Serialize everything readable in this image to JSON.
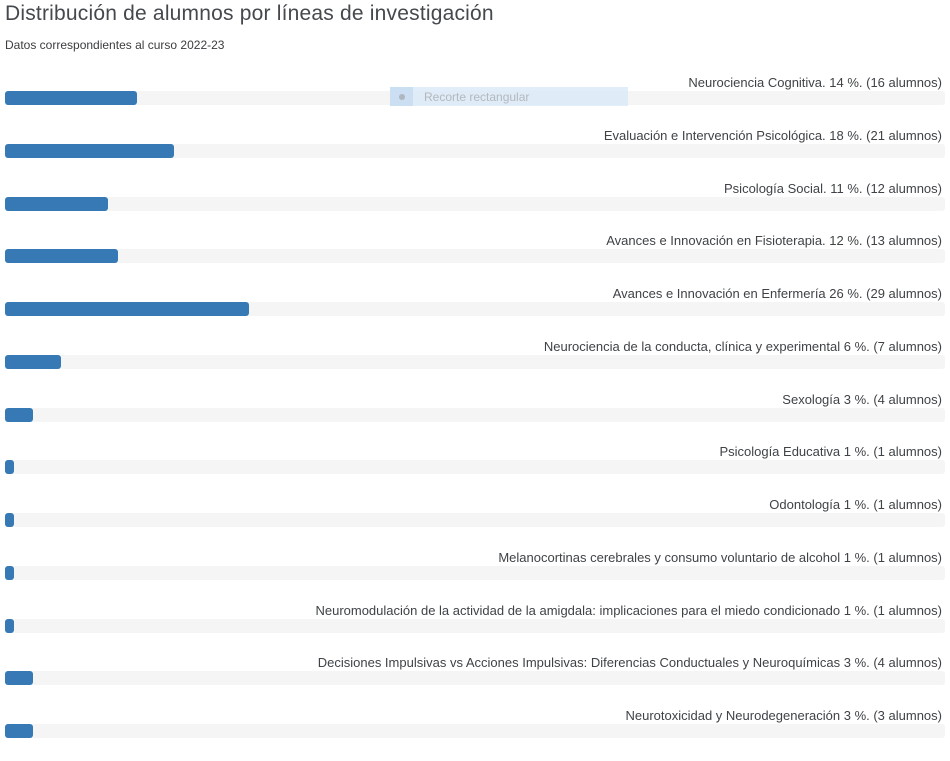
{
  "page": {
    "title": "Distribución de alumnos por líneas de investigación",
    "subtitle": "Datos correspondientes al curso 2022-23"
  },
  "snip_overlay": {
    "label": "Recorte rectangular",
    "icon": "dot-icon"
  },
  "colors": {
    "bar": "#3779b5",
    "track": "#f5f5f5",
    "title_text": "#45494e",
    "label_text": "#3f4347",
    "overlay_bg": "#d9e8f6",
    "overlay_text": "#b2b8bf"
  },
  "chart_data": {
    "type": "bar",
    "orientation": "horizontal",
    "title": "Distribución de alumnos por líneas de investigación",
    "subtitle": "Datos correspondientes al curso 2022-23",
    "xlim": [
      0,
      100
    ],
    "grid": false,
    "legend": "none",
    "bar_color": "#3779b5",
    "track_color": "#f5f5f5",
    "categories": [
      "Neurociencia Cognitiva",
      "Evaluación e Intervención Psicológica",
      "Psicología Social",
      "Avances e Innovación en Fisioterapia",
      "Avances e Innovación en Enfermería",
      "Neurociencia de la conducta, clínica y experimental",
      "Sexología",
      "Psicología Educativa",
      "Odontología",
      "Melanocortinas cerebrales y consumo voluntario de alcohol",
      "Neuromodulación de la actividad de la amigdala: implicaciones para el miedo condicionado",
      "Decisiones Impulsivas vs Acciones Impulsivas: Diferencias Conductuales y Neuroquímicas",
      "Neurotoxicidad y Neurodegeneración"
    ],
    "series": [
      {
        "name": "Porcentaje",
        "values": [
          14,
          18,
          11,
          12,
          26,
          6,
          3,
          1,
          1,
          1,
          1,
          3,
          3
        ]
      },
      {
        "name": "Alumnos",
        "values": [
          16,
          21,
          12,
          13,
          29,
          7,
          4,
          1,
          1,
          1,
          1,
          4,
          3
        ]
      }
    ],
    "bar_labels": [
      "Neurociencia Cognitiva. 14 %. (16 alumnos)",
      "Evaluación e Intervención Psicológica. 18 %. (21 alumnos)",
      "Psicología Social. 11 %. (12 alumnos)",
      "Avances e Innovación en Fisioterapia. 12 %. (13 alumnos)",
      "Avances e Innovación en Enfermería 26 %. (29 alumnos)",
      "Neurociencia de la conducta, clínica y experimental 6 %. (7 alumnos)",
      "Sexología 3 %. (4 alumnos)",
      "Psicología Educativa 1 %. (1 alumnos)",
      "Odontología 1 %. (1 alumnos)",
      "Melanocortinas cerebrales y consumo voluntario de alcohol 1 %. (1 alumnos)",
      "Neuromodulación de la actividad de la amigdala: implicaciones para el miedo condicionado 1 %. (1 alumnos)",
      "Decisiones Impulsivas vs Acciones Impulsivas: Diferencias Conductuales y Neuroquímicas 3 %. (4 alumnos)",
      "Neurotoxicidad y Neurodegeneración 3 %. (3 alumnos)"
    ]
  }
}
